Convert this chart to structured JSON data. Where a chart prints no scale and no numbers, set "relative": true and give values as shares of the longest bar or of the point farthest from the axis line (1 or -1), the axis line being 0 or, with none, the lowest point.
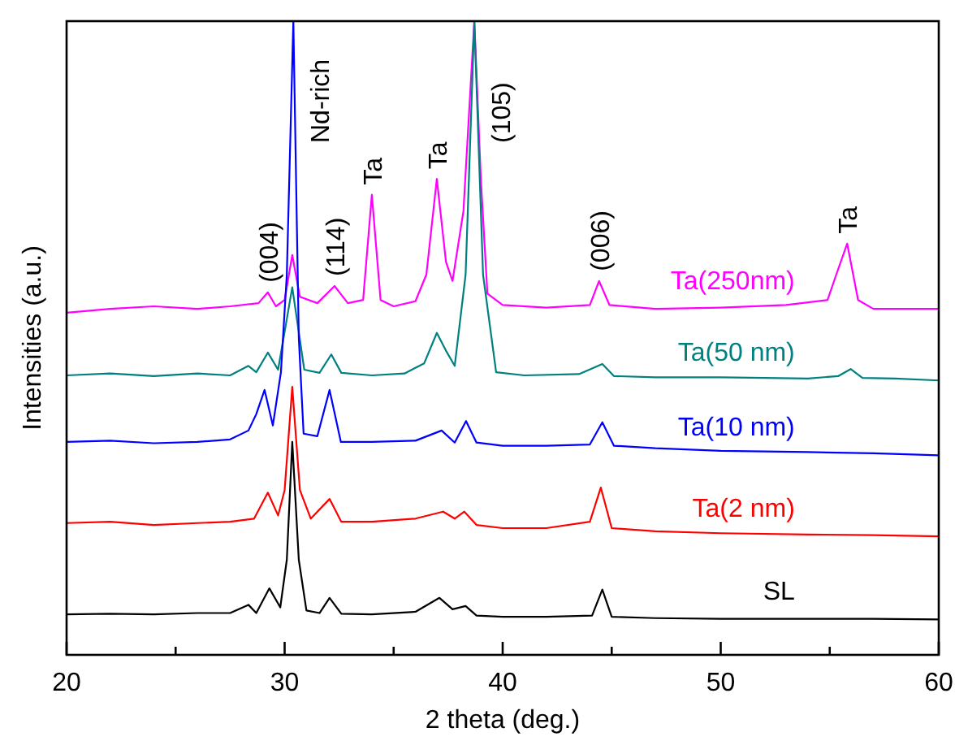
{
  "chart_data": {
    "type": "line",
    "relative": true,
    "xlabel": "2 theta (deg.)",
    "ylabel": "Intensities (a.u.)",
    "xlim": [
      20,
      60
    ],
    "xticks": [
      20,
      {
        "value": 25,
        "label": null
      },
      30,
      {
        "value": 35,
        "label": null
      },
      40,
      {
        "value": 45,
        "label": null
      },
      50,
      {
        "value": 55,
        "label": null
      },
      60
    ],
    "legend": false,
    "grid": false,
    "marker": "none",
    "line_style": "solid",
    "series": [
      {
        "name": "Ta(250nm)",
        "color": "#ff00ff",
        "x": [
          20,
          22,
          24,
          26,
          27.5,
          28.8,
          29.23,
          29.6,
          30.0,
          30.35,
          30.7,
          31.5,
          32.29,
          32.9,
          33.6,
          34.0,
          34.4,
          35.0,
          36.0,
          36.5,
          36.98,
          37.4,
          37.7,
          38.2,
          38.7,
          39.0,
          39.3,
          40.0,
          42,
          44.0,
          44.42,
          44.9,
          47,
          50,
          53,
          54.9,
          55.3,
          55.8,
          56.3,
          57,
          60
        ],
        "values": [
          0.54,
          0.546,
          0.55,
          0.546,
          0.55,
          0.555,
          0.572,
          0.55,
          0.56,
          0.631,
          0.565,
          0.555,
          0.582,
          0.555,
          0.56,
          0.726,
          0.56,
          0.55,
          0.558,
          0.6,
          0.751,
          0.62,
          0.59,
          0.7,
          1,
          0.75,
          0.57,
          0.552,
          0.548,
          0.552,
          0.59,
          0.552,
          0.546,
          0.548,
          0.552,
          0.56,
          0.6,
          0.649,
          0.56,
          0.546,
          0.546
        ]
      },
      {
        "name": "Ta(50 nm)",
        "color": "#008080",
        "x": [
          20,
          22,
          24,
          26,
          27.5,
          28.34,
          28.7,
          29.23,
          29.7,
          30.35,
          30.9,
          31.6,
          32.14,
          32.6,
          34,
          35.5,
          36.4,
          36.98,
          37.4,
          37.8,
          38.3,
          38.7,
          39.1,
          39.7,
          41,
          43.5,
          44.57,
          45.1,
          47,
          50,
          54,
          55.4,
          55.96,
          56.5,
          58,
          60
        ],
        "values": [
          0.441,
          0.444,
          0.44,
          0.444,
          0.441,
          0.456,
          0.446,
          0.477,
          0.45,
          0.58,
          0.45,
          0.445,
          0.474,
          0.445,
          0.441,
          0.444,
          0.46,
          0.508,
          0.48,
          0.456,
          0.6,
          1,
          0.6,
          0.446,
          0.441,
          0.443,
          0.459,
          0.44,
          0.438,
          0.438,
          0.436,
          0.44,
          0.451,
          0.437,
          0.436,
          0.433
        ]
      },
      {
        "name": "Ta(10 nm)",
        "color": "#0000ff",
        "x": [
          20,
          22,
          24,
          26,
          27.5,
          28.34,
          28.7,
          29.08,
          29.46,
          29.83,
          30.1,
          30.4,
          30.65,
          30.87,
          31.5,
          32.06,
          32.58,
          34,
          36,
          37.2,
          37.8,
          38.32,
          38.8,
          40,
          42,
          44.0,
          44.57,
          45.1,
          47,
          50,
          54,
          57,
          60
        ],
        "values": [
          0.336,
          0.338,
          0.334,
          0.336,
          0.34,
          0.354,
          0.38,
          0.418,
          0.362,
          0.446,
          0.6,
          1,
          0.5,
          0.349,
          0.345,
          0.418,
          0.336,
          0.336,
          0.338,
          0.354,
          0.335,
          0.369,
          0.335,
          0.33,
          0.33,
          0.332,
          0.367,
          0.33,
          0.326,
          0.322,
          0.32,
          0.318,
          0.315
        ]
      },
      {
        "name": "Ta(2 nm)",
        "color": "#ff0000",
        "x": [
          20,
          22,
          24,
          26,
          27.5,
          28.6,
          29.23,
          29.7,
          30.0,
          30.35,
          30.7,
          31.2,
          32.06,
          32.6,
          34,
          36,
          37.27,
          37.8,
          38.24,
          38.8,
          40,
          42,
          44.0,
          44.5,
          45.0,
          47,
          50,
          54,
          57,
          60
        ],
        "values": [
          0.208,
          0.21,
          0.205,
          0.208,
          0.21,
          0.215,
          0.256,
          0.22,
          0.26,
          0.423,
          0.26,
          0.215,
          0.246,
          0.21,
          0.21,
          0.215,
          0.226,
          0.215,
          0.226,
          0.205,
          0.2,
          0.2,
          0.21,
          0.264,
          0.2,
          0.195,
          0.192,
          0.19,
          0.189,
          0.187
        ]
      },
      {
        "name": "SL",
        "color": "#000000",
        "x": [
          20,
          22,
          24,
          26,
          27.5,
          28.34,
          28.7,
          29.3,
          29.8,
          30.1,
          30.35,
          30.65,
          31.0,
          31.6,
          32.06,
          32.6,
          34,
          36,
          37.1,
          37.7,
          38.3,
          38.8,
          40,
          42,
          44.1,
          44.57,
          45.0,
          47,
          50,
          54,
          57,
          60
        ],
        "values": [
          0.064,
          0.065,
          0.064,
          0.066,
          0.066,
          0.079,
          0.066,
          0.105,
          0.075,
          0.15,
          0.336,
          0.15,
          0.07,
          0.066,
          0.09,
          0.065,
          0.064,
          0.068,
          0.09,
          0.072,
          0.077,
          0.062,
          0.06,
          0.06,
          0.062,
          0.103,
          0.06,
          0.058,
          0.057,
          0.057,
          0.057,
          0.056
        ]
      }
    ],
    "annotations": [
      {
        "text": "(004)",
        "x": 29.23,
        "y": 0.572
      },
      {
        "text": "Nd-rich",
        "x": 30.4,
        "y": 1
      },
      {
        "text": "(114)",
        "x": 32.29,
        "y": 0.582
      },
      {
        "text": "Ta",
        "x": 34.0,
        "y": 0.726
      },
      {
        "text": "Ta",
        "x": 36.98,
        "y": 0.751
      },
      {
        "text": "(105)",
        "x": 38.7,
        "y": 1
      },
      {
        "text": "(006)",
        "x": 44.42,
        "y": 0.59
      },
      {
        "text": "Ta",
        "x": 55.8,
        "y": 0.649
      }
    ]
  }
}
